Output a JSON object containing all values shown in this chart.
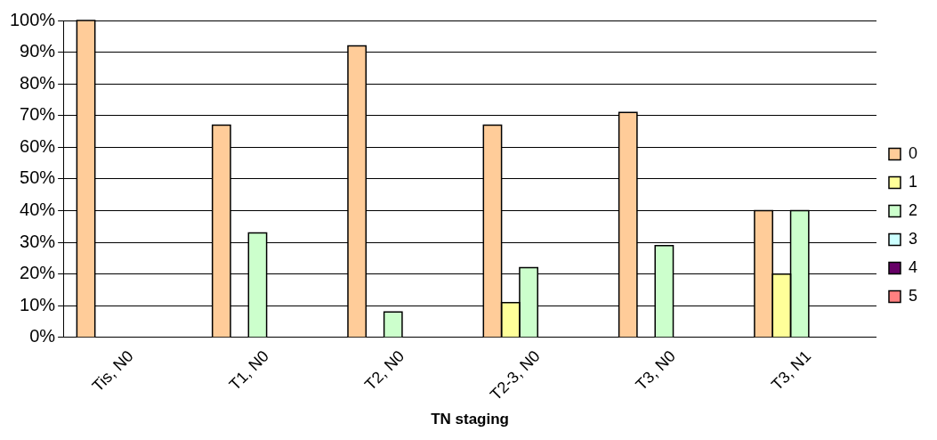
{
  "chart_data": {
    "type": "bar",
    "xlabel": "TN staging",
    "categories": [
      "Tis, N0",
      "T1, N0",
      "T2, N0",
      "T2-3, N0",
      "T3, N0",
      "T3, N1"
    ],
    "series": [
      {
        "name": "0",
        "color": "#ffcc99",
        "values": [
          100,
          67,
          92,
          67,
          71,
          40
        ]
      },
      {
        "name": "1",
        "color": "#ffff99",
        "values": [
          0,
          0,
          0,
          11,
          0,
          20
        ]
      },
      {
        "name": "2",
        "color": "#ccffcc",
        "values": [
          0,
          33,
          8,
          22,
          29,
          40
        ]
      },
      {
        "name": "3",
        "color": "#ccffff",
        "values": [
          0,
          0,
          0,
          0,
          0,
          0
        ]
      },
      {
        "name": "4",
        "color": "#660066",
        "values": [
          0,
          0,
          0,
          0,
          0,
          0
        ]
      },
      {
        "name": "5",
        "color": "#ff8080",
        "values": [
          0,
          0,
          0,
          0,
          0,
          0
        ]
      }
    ],
    "ylim": [
      0,
      100
    ],
    "yticks": [
      {
        "value": 0,
        "label": "0%"
      },
      {
        "value": 10,
        "label": "10%"
      },
      {
        "value": 20,
        "label": "20%"
      },
      {
        "value": 30,
        "label": "30%"
      },
      {
        "value": 40,
        "label": "40%"
      },
      {
        "value": 50,
        "label": "50%"
      },
      {
        "value": 60,
        "label": "60%"
      },
      {
        "value": 70,
        "label": "70%"
      },
      {
        "value": 80,
        "label": "80%"
      },
      {
        "value": 90,
        "label": "90%"
      },
      {
        "value": 100,
        "label": "100%"
      }
    ],
    "grid": "y",
    "legend": "right"
  }
}
